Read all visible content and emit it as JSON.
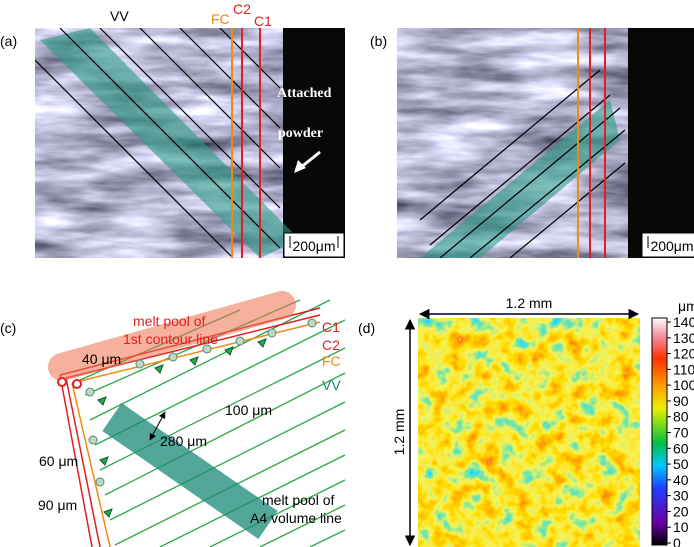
{
  "panels": {
    "a": {
      "label": "(a)",
      "lines": [
        "VV",
        "FC",
        "C2",
        "C1"
      ],
      "annotation": [
        "Attached",
        "powder"
      ],
      "scale_bar": "200μm"
    },
    "b": {
      "label": "(b)",
      "scale_bar": "200μm"
    },
    "c": {
      "label": "(c)",
      "melt_pool_contour": [
        "melt pool of",
        "1st contour line"
      ],
      "lines": [
        "C1",
        "C2",
        "FC",
        "VV"
      ],
      "dimensions": [
        "40 μm",
        "280 μm",
        "100 μm",
        "60 μm",
        "90 μm"
      ],
      "melt_pool_volume": [
        "melt pool of",
        "A4 volume line"
      ]
    },
    "d": {
      "label": "(d)",
      "width": "1.2 mm",
      "height": "1.2 mm",
      "colorbar": {
        "unit": "μm",
        "ticks": [
          140,
          130,
          120,
          110,
          100,
          90,
          80,
          70,
          60,
          50,
          40,
          30,
          20,
          10,
          0
        ]
      }
    }
  }
}
